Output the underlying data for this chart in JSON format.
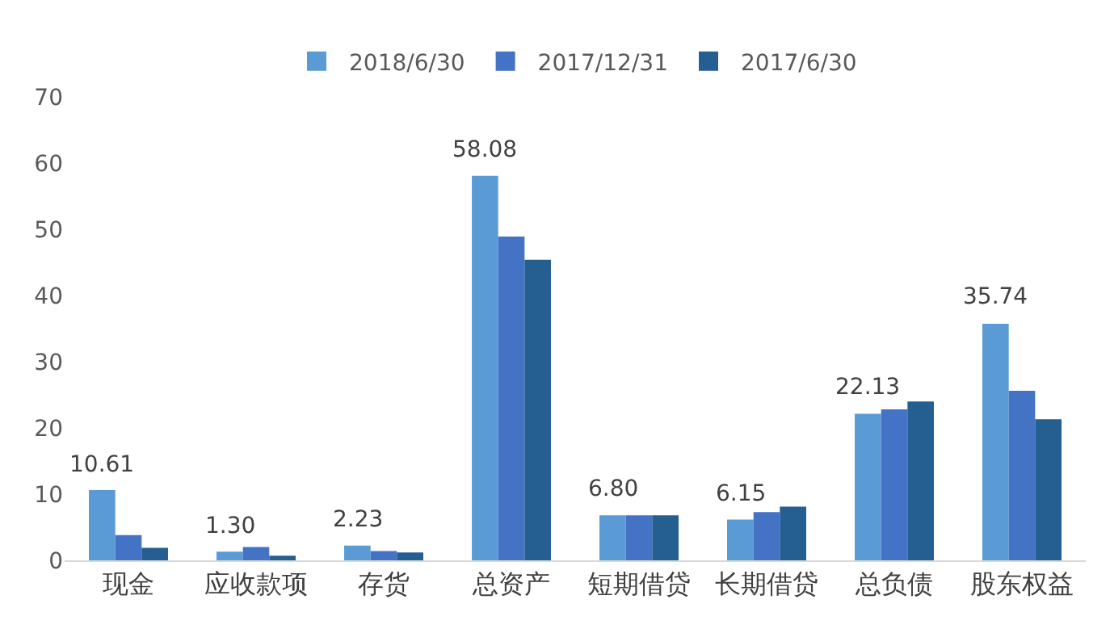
{
  "chart_data": {
    "type": "bar",
    "categories": [
      "现金",
      "应收款项",
      "存货",
      "总资产",
      "短期借贷",
      "长期借贷",
      "总负债",
      "股东权益"
    ],
    "series": [
      {
        "name": "2018/6/30",
        "color": "#5b9bd5",
        "values": [
          10.61,
          1.3,
          2.23,
          58.08,
          6.8,
          6.15,
          22.13,
          35.74
        ],
        "value_labels": [
          "10.61",
          "1.30",
          "2.23",
          "58.08",
          "6.80",
          "6.15",
          "22.13",
          "35.74"
        ]
      },
      {
        "name": "2017/12/31",
        "color": "#4472c4",
        "values": [
          3.8,
          2.0,
          1.4,
          48.9,
          6.8,
          7.3,
          22.8,
          25.6
        ]
      },
      {
        "name": "2017/6/30",
        "color": "#255e91",
        "values": [
          1.9,
          0.7,
          1.2,
          45.4,
          6.8,
          8.1,
          24.0,
          21.3
        ]
      }
    ],
    "ylim": [
      0,
      70
    ],
    "yticks": [
      0,
      10,
      20,
      30,
      40,
      50,
      60,
      70
    ],
    "grid": false,
    "legend": "top"
  }
}
